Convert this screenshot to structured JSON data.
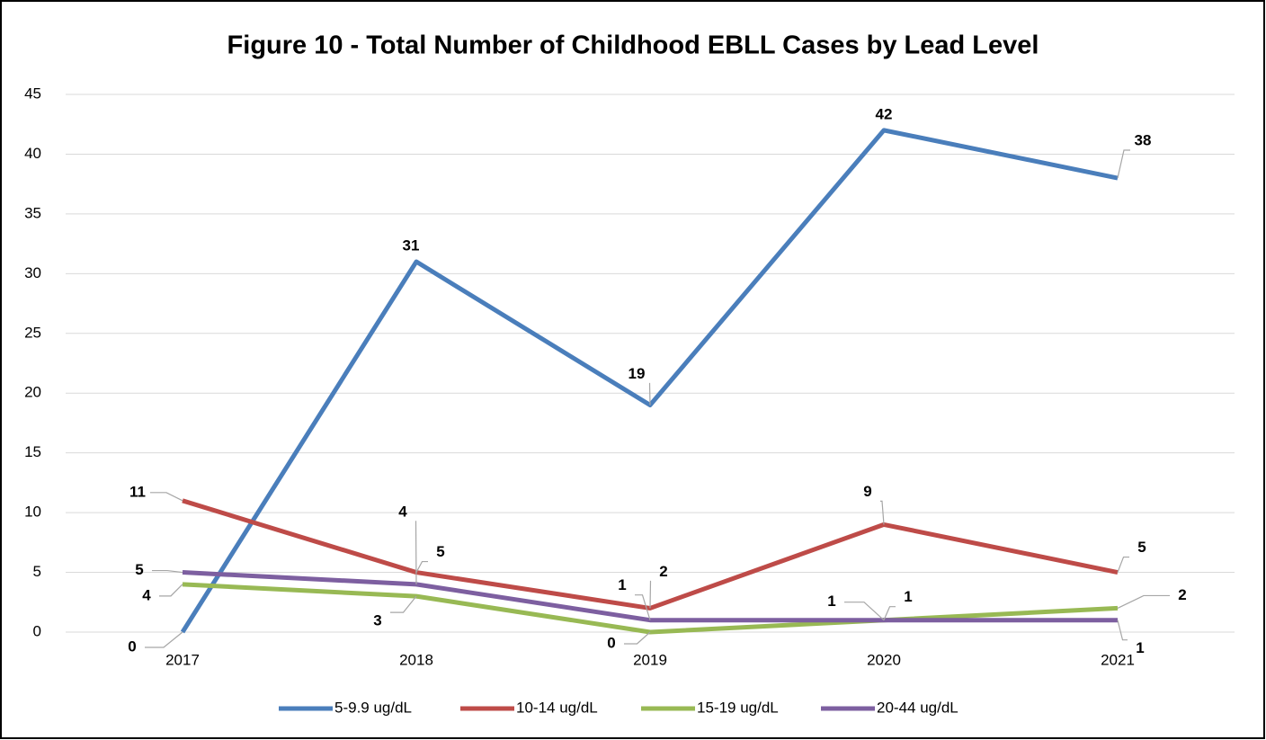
{
  "chart_data": {
    "type": "line",
    "title": "Figure 10 - Total Number of Childhood EBLL Cases by Lead Level",
    "categories": [
      "2017",
      "2018",
      "2019",
      "2020",
      "2021"
    ],
    "series": [
      {
        "name": "5-9.9 ug/dL",
        "color": "#4a7ebb",
        "values": [
          0,
          31,
          19,
          42,
          38
        ]
      },
      {
        "name": "10-14 ug/dL",
        "color": "#be4b48",
        "values": [
          11,
          5,
          2,
          9,
          5
        ]
      },
      {
        "name": "15-19 ug/dL",
        "color": "#98b954",
        "values": [
          4,
          3,
          0,
          1,
          2
        ]
      },
      {
        "name": "20-44 ug/dL",
        "color": "#7d5fa0",
        "values": [
          5,
          4,
          1,
          1,
          1
        ]
      }
    ],
    "ylim": [
      0,
      45
    ],
    "yticks": [
      0,
      5,
      10,
      15,
      20,
      25,
      30,
      35,
      40,
      45
    ],
    "grid": true,
    "legend": "bottom"
  }
}
